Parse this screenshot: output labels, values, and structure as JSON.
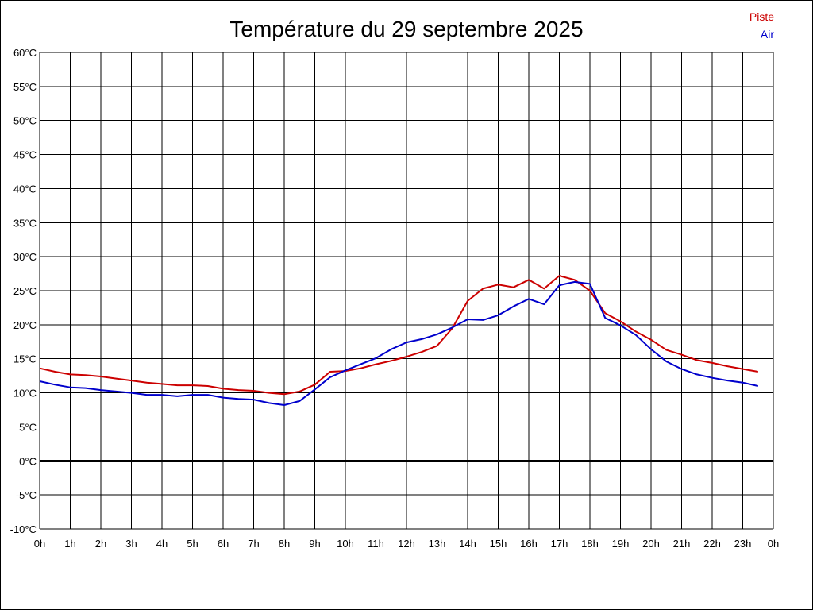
{
  "chart_data": {
    "type": "line",
    "title": "Température du 29 septembre 2025",
    "x_tick_labels": [
      "0h",
      "1h",
      "2h",
      "3h",
      "4h",
      "5h",
      "6h",
      "7h",
      "8h",
      "9h",
      "10h",
      "11h",
      "12h",
      "13h",
      "14h",
      "15h",
      "16h",
      "17h",
      "18h",
      "19h",
      "20h",
      "21h",
      "22h",
      "23h",
      "0h"
    ],
    "y_tick_labels": [
      "60°C",
      "55°C",
      "50°C",
      "45°C",
      "40°C",
      "35°C",
      "30°C",
      "25°C",
      "20°C",
      "15°C",
      "10°C",
      "5°C",
      "0°C",
      "-5°C",
      "-10°C"
    ],
    "xlim": [
      0,
      24
    ],
    "ylim": [
      -10,
      60
    ],
    "grid": true,
    "legend_position": "top-right",
    "x": [
      0,
      0.5,
      1,
      1.5,
      2,
      2.5,
      3,
      3.5,
      4,
      4.5,
      5,
      5.5,
      6,
      6.5,
      7,
      7.5,
      8,
      8.5,
      9,
      9.5,
      10,
      10.5,
      11,
      11.5,
      12,
      12.5,
      13,
      13.5,
      14,
      14.5,
      15,
      15.5,
      16,
      16.5,
      17,
      17.5,
      18,
      18.5,
      19,
      19.5,
      20,
      20.5,
      21,
      21.5,
      22,
      22.5,
      23,
      23.5
    ],
    "series": [
      {
        "name": "Piste",
        "color": "#cc0000",
        "values": [
          13.6,
          13.1,
          12.7,
          12.6,
          12.4,
          12.1,
          11.8,
          11.5,
          11.3,
          11.1,
          11.1,
          11.0,
          10.6,
          10.4,
          10.3,
          10.0,
          9.8,
          10.2,
          11.2,
          13.1,
          13.2,
          13.6,
          14.2,
          14.7,
          15.3,
          16.0,
          16.9,
          19.5,
          23.5,
          25.3,
          25.9,
          25.5,
          26.6,
          25.3,
          27.2,
          26.6,
          25.0,
          21.7,
          20.5,
          19.0,
          17.8,
          16.3,
          15.6,
          14.8,
          14.4,
          13.9,
          13.5,
          13.1
        ]
      },
      {
        "name": "Air",
        "color": "#0000cc",
        "values": [
          11.7,
          11.2,
          10.8,
          10.7,
          10.4,
          10.2,
          10.0,
          9.7,
          9.7,
          9.5,
          9.7,
          9.7,
          9.3,
          9.1,
          9.0,
          8.5,
          8.2,
          8.8,
          10.5,
          12.3,
          13.3,
          14.2,
          15.1,
          16.4,
          17.4,
          17.9,
          18.6,
          19.6,
          20.8,
          20.7,
          21.4,
          22.7,
          23.8,
          23.0,
          25.8,
          26.3,
          26.0,
          21.0,
          19.9,
          18.5,
          16.4,
          14.6,
          13.5,
          12.7,
          12.2,
          11.8,
          11.5,
          11.0
        ]
      }
    ]
  }
}
